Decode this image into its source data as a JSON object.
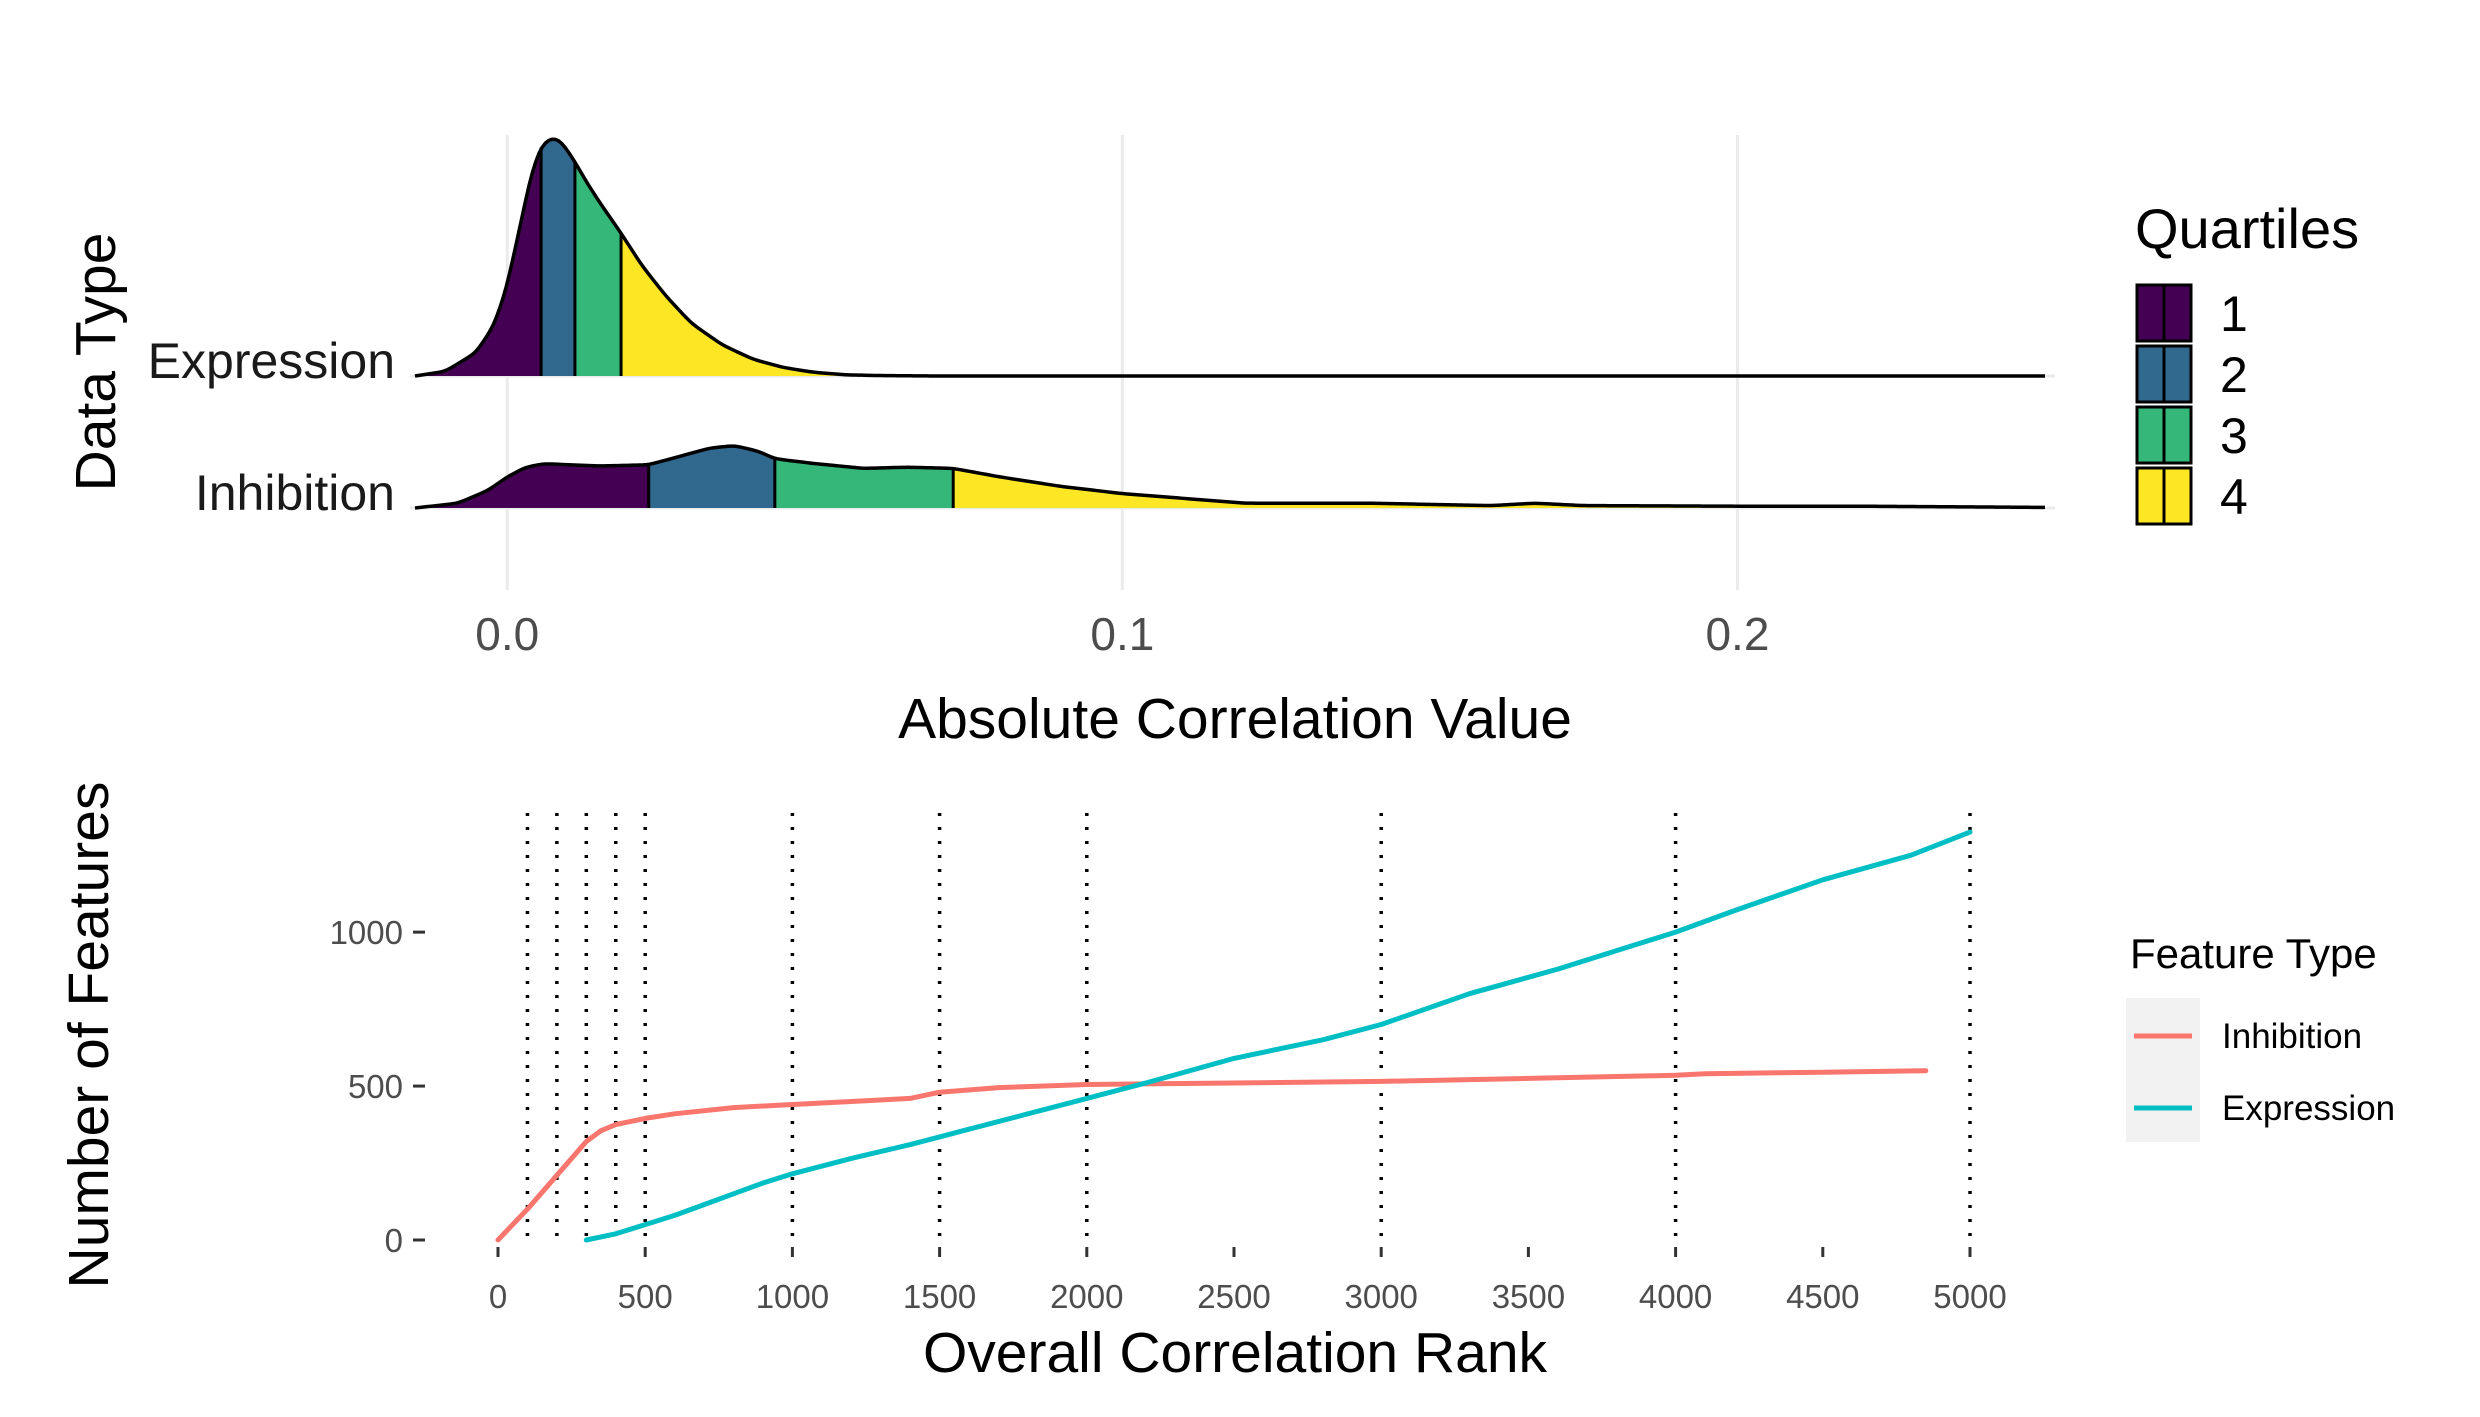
{
  "chart_data": [
    {
      "type": "area",
      "subtype": "ridgeline-density",
      "xlabel": "Absolute Correlation Value",
      "ylabel": "Data Type",
      "xlim": [
        -0.015,
        0.25
      ],
      "xticks": [
        "0.0",
        "0.1",
        "0.2"
      ],
      "xtick_values": [
        0.0,
        0.1,
        0.2
      ],
      "grid": true,
      "categories": [
        "Expression",
        "Inhibition"
      ],
      "legend": {
        "title": "Quartiles",
        "position": "right",
        "items": [
          {
            "label": "1",
            "color": "#440154"
          },
          {
            "label": "2",
            "color": "#31688E"
          },
          {
            "label": "3",
            "color": "#35B779"
          },
          {
            "label": "4",
            "color": "#FDE725"
          }
        ]
      },
      "series": [
        {
          "name": "Expression",
          "quartile_breaks": [
            0.0055,
            0.011,
            0.0185
          ],
          "x": [
            -0.015,
            -0.01,
            -0.005,
            -0.002,
            0.0,
            0.002,
            0.004,
            0.0055,
            0.007,
            0.008,
            0.009,
            0.011,
            0.013,
            0.015,
            0.0185,
            0.022,
            0.026,
            0.03,
            0.035,
            0.04,
            0.045,
            0.05,
            0.055,
            0.06,
            0.07,
            0.08,
            0.1,
            0.15,
            0.2,
            0.25
          ],
          "density": [
            0.0,
            0.02,
            0.1,
            0.22,
            0.38,
            0.62,
            0.86,
            0.97,
            1.0,
            1.0,
            0.98,
            0.9,
            0.81,
            0.73,
            0.6,
            0.46,
            0.33,
            0.22,
            0.13,
            0.07,
            0.035,
            0.015,
            0.005,
            0.002,
            0.0,
            0.0,
            0.0,
            0.0,
            0.0,
            0.0
          ]
        },
        {
          "name": "Inhibition",
          "quartile_breaks": [
            0.023,
            0.0435,
            0.0725
          ],
          "x": [
            -0.015,
            -0.008,
            -0.003,
            0.0,
            0.003,
            0.006,
            0.01,
            0.015,
            0.023,
            0.028,
            0.033,
            0.037,
            0.041,
            0.0435,
            0.05,
            0.058,
            0.065,
            0.0725,
            0.08,
            0.09,
            0.1,
            0.105,
            0.12,
            0.14,
            0.16,
            0.167,
            0.175,
            0.2,
            0.22,
            0.25
          ],
          "density": [
            0.0,
            0.04,
            0.15,
            0.26,
            0.34,
            0.37,
            0.36,
            0.35,
            0.36,
            0.43,
            0.5,
            0.52,
            0.47,
            0.41,
            0.37,
            0.33,
            0.34,
            0.33,
            0.26,
            0.18,
            0.12,
            0.1,
            0.04,
            0.04,
            0.02,
            0.04,
            0.02,
            0.015,
            0.015,
            0.005
          ]
        }
      ]
    },
    {
      "type": "line",
      "xlabel": "Overall Correlation Rank",
      "ylabel": "Number of Features",
      "xlim": [
        0,
        5000
      ],
      "ylim": [
        0,
        1335
      ],
      "xticks": [
        "0",
        "500",
        "1000",
        "1500",
        "2000",
        "2500",
        "3000",
        "3500",
        "4000",
        "4500",
        "5000"
      ],
      "xtick_values": [
        0,
        500,
        1000,
        1500,
        2000,
        2500,
        3000,
        3500,
        4000,
        4500,
        5000
      ],
      "yticks": [
        "0",
        "500",
        "1000"
      ],
      "ytick_values": [
        0,
        500,
        1000
      ],
      "grid": false,
      "reference_lines": [
        100,
        200,
        300,
        400,
        500,
        1000,
        1500,
        2000,
        3000,
        4000,
        5000
      ],
      "legend": {
        "title": "Feature Type",
        "position": "right",
        "items": [
          {
            "label": "Inhibition",
            "color": "#F8766D"
          },
          {
            "label": "Expression",
            "color": "#00BFC4"
          }
        ]
      },
      "series": [
        {
          "name": "Inhibition",
          "x": [
            0,
            100,
            200,
            300,
            350,
            400,
            500,
            600,
            800,
            1000,
            1200,
            1400,
            1450,
            1500,
            1700,
            2000,
            2500,
            3000,
            3500,
            4000,
            4100,
            4500,
            4850
          ],
          "y": [
            0,
            100,
            210,
            320,
            355,
            375,
            395,
            410,
            430,
            440,
            450,
            460,
            470,
            480,
            495,
            505,
            510,
            515,
            525,
            535,
            540,
            545,
            550
          ]
        },
        {
          "name": "Expression",
          "x": [
            300,
            400,
            500,
            600,
            700,
            800,
            900,
            1000,
            1200,
            1400,
            1500,
            1600,
            2000,
            2200,
            2500,
            2800,
            3000,
            3300,
            3600,
            4000,
            4200,
            4500,
            4800,
            5000
          ],
          "y": [
            0,
            20,
            50,
            80,
            115,
            150,
            185,
            215,
            265,
            310,
            335,
            360,
            460,
            510,
            590,
            650,
            700,
            800,
            880,
            1000,
            1070,
            1170,
            1250,
            1325
          ]
        }
      ]
    }
  ]
}
